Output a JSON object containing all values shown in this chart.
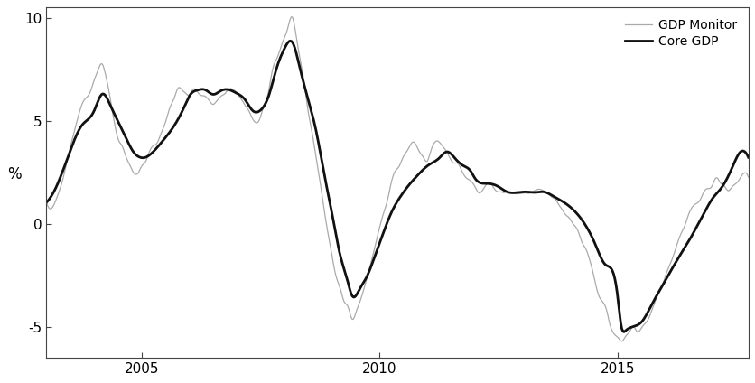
{
  "ylabel": "%",
  "xlim_start": 2003.0,
  "xlim_end": 2017.75,
  "ylim": [
    -6.5,
    10.5
  ],
  "yticks": [
    -5,
    0,
    5,
    10
  ],
  "xticks": [
    2005,
    2010,
    2015
  ],
  "background_color": "#ffffff",
  "legend_labels": [
    "GDP Monitor",
    "Core GDP"
  ],
  "gdp_monitor_color": "#aaaaaa",
  "core_gdp_color": "#111111",
  "gdp_monitor_lw": 0.9,
  "core_gdp_lw": 2.0,
  "n_points": 180,
  "time_start": 2003.0,
  "time_end": 2017.75
}
